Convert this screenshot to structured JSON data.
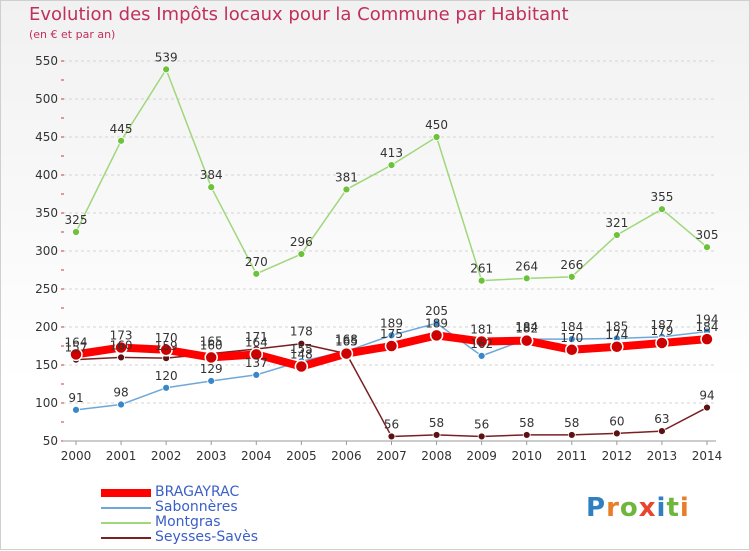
{
  "header": {
    "title": "Evolution des Impôts locaux pour la Commune par Habitant",
    "subtitle": "(en € et par an)"
  },
  "brand": {
    "letters": [
      "P",
      "r",
      "o",
      "x",
      "i",
      "t",
      "i"
    ],
    "colors": [
      "#2f7fc1",
      "#e87e2a",
      "#6fb63d",
      "#e8452e",
      "#2f7fc1",
      "#6fb63d",
      "#e87e2a"
    ]
  },
  "chart_data": {
    "type": "line",
    "title": "Evolution des Impôts locaux pour la Commune par Habitant",
    "subtitle": "(en € et par an)",
    "xlabel": "",
    "ylabel": "",
    "x": [
      "2000",
      "2001",
      "2002",
      "2003",
      "2004",
      "2005",
      "2006",
      "2007",
      "2008",
      "2009",
      "2010",
      "2011",
      "2012",
      "2013",
      "2014"
    ],
    "ylim": [
      50,
      550
    ],
    "yticks": [
      50,
      100,
      150,
      200,
      250,
      300,
      350,
      400,
      450,
      500,
      550
    ],
    "grid": true,
    "legend_position": "bottom-left",
    "series": [
      {
        "name": "BRAGAYRAC",
        "color": "#ff0000",
        "marker": "#cc0000",
        "width": 8,
        "values": [
          164,
          173,
          170,
          160,
          164,
          148,
          165,
          175,
          189,
          181,
          182,
          170,
          174,
          179,
          184
        ]
      },
      {
        "name": "Sabonnères",
        "color": "#6fa8d8",
        "marker": "#3a86c8",
        "width": 1.5,
        "values": [
          91,
          98,
          120,
          129,
          137,
          155,
          168,
          189,
          205,
          162,
          184,
          184,
          185,
          187,
          194
        ]
      },
      {
        "name": "Montgras",
        "color": "#9fd77a",
        "marker": "#6cc23a",
        "width": 1.5,
        "values": [
          325,
          445,
          539,
          384,
          270,
          296,
          381,
          413,
          450,
          261,
          264,
          266,
          321,
          355,
          305
        ]
      },
      {
        "name": "Seysses-Savès",
        "color": "#7a1f22",
        "marker": "#5c1214",
        "width": 1.5,
        "values": [
          157,
          160,
          159,
          165,
          171,
          178,
          165,
          56,
          58,
          56,
          58,
          58,
          60,
          63,
          94
        ]
      }
    ]
  }
}
